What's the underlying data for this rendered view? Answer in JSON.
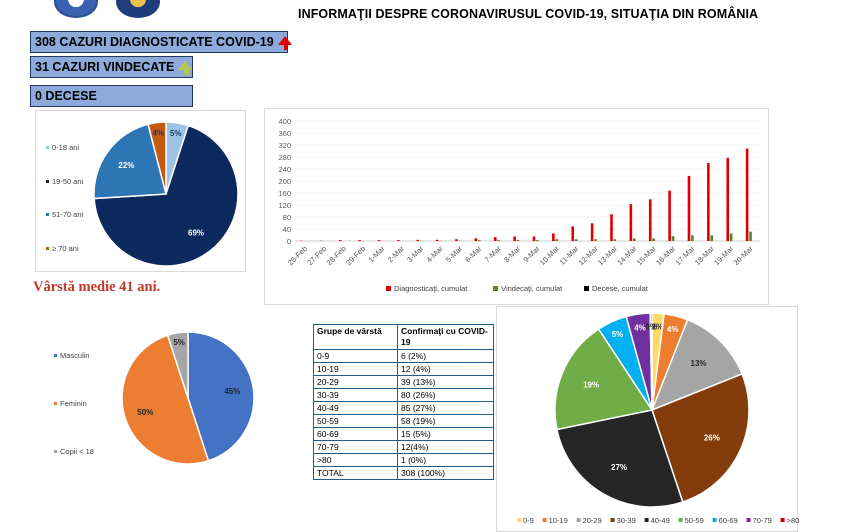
{
  "header": {
    "title": "INFORMAŢII DESPRE CORONAVIRUSUL COVID-19, SITUAŢIA DIN ROMÂNIA"
  },
  "stats": {
    "diagnosed": "308 CAZURI DIAGNOSTICATE COVID-19",
    "recovered": "31 CAZURI VINDECATE",
    "deaths": "0 DECESE"
  },
  "avg_age": "Vârstă medie 41 ani.",
  "table": {
    "headers": [
      "Grupe de vârstă",
      "Confirmaţi cu COVID-19"
    ],
    "rows": [
      [
        "0-9",
        "6 (2%)"
      ],
      [
        "10-19",
        "12 (4%)"
      ],
      [
        "20-29",
        "39 (13%)"
      ],
      [
        "30-39",
        "80 (26%)"
      ],
      [
        "40-49",
        "85 (27%)"
      ],
      [
        "50-59",
        "58 (19%)"
      ],
      [
        "60-69",
        "15 (5%)"
      ],
      [
        "70-79",
        "12(4%)"
      ],
      [
        ">80",
        "1 (0%)"
      ],
      [
        "TOTAL",
        "308 (100%)"
      ]
    ]
  },
  "chart_data": [
    {
      "type": "pie",
      "id": "age-groups-pie",
      "title": "",
      "legend_position": "left",
      "labels": [
        "0-18 ani",
        "19-50 ani",
        "51-70 ani",
        "≥ 70 ani"
      ],
      "values": [
        5,
        69,
        22,
        4
      ],
      "display_labels": [
        "5%",
        "69%",
        "22%",
        "4%"
      ],
      "colors": [
        "#9dc3e6",
        "#0d2a5e",
        "#2e75b6",
        "#c55a11"
      ]
    },
    {
      "type": "bar",
      "id": "cumulative-bars",
      "title": "",
      "categories": [
        "26-Feb",
        "27-Feb",
        "28-Feb",
        "29-Feb",
        "1-Mar",
        "2-Mar",
        "3-Mar",
        "4-Mar",
        "5-Mar",
        "6-Mar",
        "7-Mar",
        "8-Mar",
        "9-Mar",
        "10-Mar",
        "11-Mar",
        "12-Mar",
        "13-Mar",
        "14-Mar",
        "15-Mar",
        "16-Mar",
        "17-Mar",
        "18-Mar",
        "19-Mar",
        "20-Mar"
      ],
      "series": [
        {
          "name": "Diagnosticaţi, cumulat",
          "color": "#e00000",
          "values": [
            1,
            1,
            3,
            3,
            3,
            3,
            4,
            4,
            6,
            9,
            13,
            15,
            15,
            25,
            49,
            59,
            89,
            123,
            139,
            168,
            217,
            260,
            277,
            308
          ]
        },
        {
          "name": "Vindecaţi, cumulat",
          "color": "#548235",
          "values": [
            0,
            0,
            0,
            0,
            0,
            0,
            1,
            1,
            1,
            3,
            3,
            3,
            3,
            6,
            6,
            6,
            6,
            9,
            9,
            16,
            19,
            19,
            25,
            31
          ]
        },
        {
          "name": "Decese, cumulat",
          "color": "#000000",
          "values": [
            0,
            0,
            0,
            0,
            0,
            0,
            0,
            0,
            0,
            0,
            0,
            0,
            0,
            0,
            0,
            0,
            0,
            0,
            0,
            0,
            0,
            0,
            0,
            0
          ]
        }
      ],
      "ylim": [
        0,
        400
      ],
      "yticks": [
        0,
        20,
        40,
        60,
        80,
        100,
        120,
        140,
        160,
        180,
        200,
        220,
        240,
        260,
        280,
        300,
        320,
        340,
        360,
        380,
        400
      ],
      "xlabel": "",
      "ylabel": "",
      "legend_position": "bottom"
    },
    {
      "type": "pie",
      "id": "gender-pie",
      "title": "",
      "legend_position": "left",
      "labels": [
        "Masculin",
        "Feminin",
        "Copii < 18"
      ],
      "values": [
        45,
        50,
        5
      ],
      "display_labels": [
        "45%",
        "50%",
        "5%"
      ],
      "colors": [
        "#4472c4",
        "#ed7d31",
        "#a5a5a5"
      ]
    },
    {
      "type": "pie",
      "id": "decade-pie",
      "title": "",
      "legend_position": "bottom",
      "labels": [
        "0-9",
        "10-19",
        "20-29",
        "30-39",
        "40-49",
        "50-59",
        "60-69",
        "70-79",
        ">80"
      ],
      "values": [
        2,
        4,
        13,
        26,
        27,
        19,
        5,
        4,
        0.3
      ],
      "display_labels": [
        "2%",
        "4%",
        "13%",
        "26%",
        "27%",
        "19%",
        "5%",
        "4%",
        "0%"
      ],
      "colors": [
        "#ffd966",
        "#ed7d31",
        "#a5a5a5",
        "#843c0c",
        "#262626",
        "#70ad47",
        "#00b0f0",
        "#7030a0",
        "#c00000"
      ]
    }
  ]
}
